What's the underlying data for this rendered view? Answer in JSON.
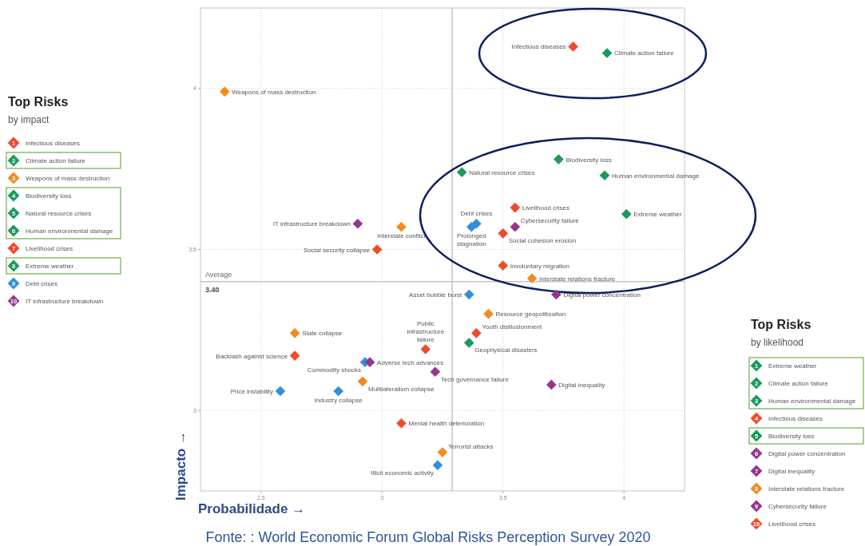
{
  "chart_data": [
    {
      "type": "scatter",
      "xlabel": "Probabilidade →",
      "ylabel": "Impacto →",
      "xlim": [
        2.25,
        4.25
      ],
      "ylim": [
        2.75,
        4.25
      ],
      "xticks": [
        2.5,
        3,
        3.5,
        4
      ],
      "yticks": [
        3,
        3.5,
        4
      ],
      "grid": true,
      "marker": "diamond",
      "ref_lines": [
        {
          "axis": "y",
          "value": 3.4,
          "label": "Average"
        },
        {
          "axis": "x",
          "value": 3.29,
          "label": null
        }
      ],
      "annotations": [
        "Fonte: : World Economic Forum Global Risks Perception Survey 2020",
        {
          "text": "3.40",
          "x": 2.25,
          "y": 3.4
        }
      ],
      "series": [
        {
          "name": "Infectious diseases",
          "color": "#f04a2c",
          "x": [
            3.79
          ],
          "values": [
            4.13
          ]
        },
        {
          "name": "Climate action failure",
          "color": "#1a9a5c",
          "x": [
            3.93
          ],
          "values": [
            4.11
          ]
        },
        {
          "name": "Weapons of mass destruction",
          "color": "#f58a1f",
          "x": [
            2.35
          ],
          "values": [
            3.99
          ]
        },
        {
          "name": "Biodiversity loss",
          "color": "#1a9a5c",
          "x": [
            3.73
          ],
          "values": [
            3.78
          ]
        },
        {
          "name": "Natural resource crises",
          "color": "#1a9a5c",
          "x": [
            3.33
          ],
          "values": [
            3.74
          ]
        },
        {
          "name": "Human environmental damage",
          "color": "#1a9a5c",
          "x": [
            3.92
          ],
          "values": [
            3.73
          ]
        },
        {
          "name": "Livelihood crises",
          "color": "#f04a2c",
          "x": [
            3.55
          ],
          "values": [
            3.63
          ]
        },
        {
          "name": "Extreme weather",
          "color": "#1a9a5c",
          "x": [
            4.01
          ],
          "values": [
            3.61
          ]
        },
        {
          "name": "Debt crises",
          "color": "#2f8fdc",
          "x": [
            3.39
          ],
          "values": [
            3.58
          ]
        },
        {
          "name": "Prolonged stagnation",
          "color": "#2f8fdc",
          "x": [
            3.37
          ],
          "values": [
            3.57
          ]
        },
        {
          "name": "Cybersecurity failure",
          "color": "#94368f",
          "x": [
            3.55
          ],
          "values": [
            3.57
          ]
        },
        {
          "name": "Social cohesion erosion",
          "color": "#f04a2c",
          "x": [
            3.5
          ],
          "values": [
            3.55
          ]
        },
        {
          "name": "IT infrastructure breakdown",
          "color": "#94368f",
          "x": [
            2.9
          ],
          "values": [
            3.58
          ]
        },
        {
          "name": "Interstate conflict",
          "color": "#f58a1f",
          "x": [
            3.08
          ],
          "values": [
            3.57
          ]
        },
        {
          "name": "Social security collapse",
          "color": "#f04a2c",
          "x": [
            2.98
          ],
          "values": [
            3.5
          ]
        },
        {
          "name": "Involuntary migration",
          "color": "#f04a2c",
          "x": [
            3.5
          ],
          "values": [
            3.45
          ]
        },
        {
          "name": "Interstate relations fracture",
          "color": "#f58a1f",
          "x": [
            3.62
          ],
          "values": [
            3.41
          ]
        },
        {
          "name": "Digital power concentration",
          "color": "#94368f",
          "x": [
            3.72
          ],
          "values": [
            3.36
          ]
        },
        {
          "name": "Asset bubble burst",
          "color": "#2f8fdc",
          "x": [
            3.36
          ],
          "values": [
            3.36
          ]
        },
        {
          "name": "Resource geopolitization",
          "color": "#f58a1f",
          "x": [
            3.44
          ],
          "values": [
            3.3
          ]
        },
        {
          "name": "Youth disillusionment",
          "color": "#f04a2c",
          "x": [
            3.39
          ],
          "values": [
            3.24
          ]
        },
        {
          "name": "Geophysical disasters",
          "color": "#1a9a5c",
          "x": [
            3.36
          ],
          "values": [
            3.21
          ]
        },
        {
          "name": "Public infrastructure failure",
          "color": "#f04a2c",
          "x": [
            3.18
          ],
          "values": [
            3.19
          ]
        },
        {
          "name": "State collapse",
          "color": "#f58a1f",
          "x": [
            2.64
          ],
          "values": [
            3.24
          ]
        },
        {
          "name": "Backlash against science",
          "color": "#f04a2c",
          "x": [
            2.64
          ],
          "values": [
            3.17
          ]
        },
        {
          "name": "Commodity shocks",
          "color": "#2f8fdc",
          "x": [
            2.93
          ],
          "values": [
            3.15
          ]
        },
        {
          "name": "Adverse tech advances",
          "color": "#94368f",
          "x": [
            2.95
          ],
          "values": [
            3.15
          ]
        },
        {
          "name": "Tech governance failure",
          "color": "#94368f",
          "x": [
            3.22
          ],
          "values": [
            3.12
          ]
        },
        {
          "name": "Digital inequality",
          "color": "#94368f",
          "x": [
            3.7
          ],
          "values": [
            3.08
          ]
        },
        {
          "name": "Price instability",
          "color": "#2f8fdc",
          "x": [
            2.58
          ],
          "values": [
            3.06
          ]
        },
        {
          "name": "Industry collapse",
          "color": "#2f8fdc",
          "x": [
            2.82
          ],
          "values": [
            3.06
          ]
        },
        {
          "name": "Multilateralism collapse",
          "color": "#f58a1f",
          "x": [
            2.92
          ],
          "values": [
            3.09
          ]
        },
        {
          "name": "Mental health deterioration",
          "color": "#f04a2c",
          "x": [
            3.08
          ],
          "values": [
            2.96
          ]
        },
        {
          "name": "Terrorist attacks",
          "color": "#f58a1f",
          "x": [
            3.25
          ],
          "values": [
            2.87
          ]
        },
        {
          "name": "Illicit economic activity",
          "color": "#2f8fdc",
          "x": [
            3.23
          ],
          "values": [
            2.83
          ]
        }
      ]
    },
    {
      "type": "other",
      "title": "Top Risks",
      "subtitle": "by impact",
      "data_labels": true,
      "categories": [
        "Infectious diseases",
        "Climate action failure",
        "Weapons of mass destruction",
        "Biodiversity loss",
        "Natural resource crises",
        "Human environmental damage",
        "Livelihood crises",
        "Extreme weather",
        "Debt crises",
        "IT infrastructure breakdown"
      ],
      "values": [
        1,
        2,
        3,
        4,
        5,
        6,
        7,
        8,
        9,
        10
      ],
      "colors": [
        "#f04a2c",
        "#1a9a5c",
        "#f58a1f",
        "#1a9a5c",
        "#1a9a5c",
        "#1a9a5c",
        "#f04a2c",
        "#1a9a5c",
        "#2f8fdc",
        "#94368f"
      ]
    },
    {
      "type": "other",
      "title": "Top Risks",
      "subtitle": "by likelihood",
      "data_labels": true,
      "categories": [
        "Extreme weather",
        "Climate action failure",
        "Human environmental damage",
        "Infectious diseases",
        "Biodiversity loss",
        "Digital power concentration",
        "Digital inequality",
        "Interstate relations fracture",
        "Cybersecurity failure",
        "Livelihood crises"
      ],
      "values": [
        1,
        2,
        3,
        4,
        5,
        6,
        7,
        8,
        9,
        10
      ],
      "colors": [
        "#1a9a5c",
        "#1a9a5c",
        "#1a9a5c",
        "#f04a2c",
        "#1a9a5c",
        "#94368f",
        "#94368f",
        "#f58a1f",
        "#94368f",
        "#f04a2c"
      ]
    }
  ]
}
